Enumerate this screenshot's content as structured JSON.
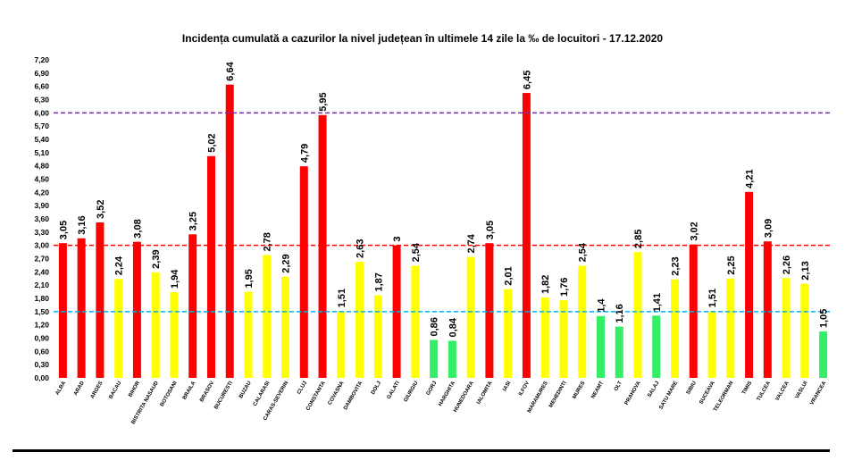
{
  "chart_data": {
    "type": "bar",
    "title": "Incidența cumulată a cazurilor la nivel județean în ultimele 14 zile la ‰ de locuitori - 17.12.2020",
    "xlabel": "",
    "ylabel": "",
    "ylim": [
      0,
      7.2
    ],
    "ytick_step": 0.3,
    "grid": false,
    "categories": [
      "ALBA",
      "ARAD",
      "ARGES",
      "BACAU",
      "BIHOR",
      "BISTRITA NASAUD",
      "BOTOSANI",
      "BRAILA",
      "BRASOV",
      "BUCURESTI",
      "BUZAU",
      "CALARASI",
      "CARAS-SEVERIN",
      "CLUJ",
      "CONSTANTA",
      "COVASNA",
      "DAMBOVITA",
      "DOLJ",
      "GALATI",
      "GIURGIU",
      "GORJ",
      "HARGHITA",
      "HUNEDOARA",
      "IALOMITA",
      "IASI",
      "ILFOV",
      "MARAMURES",
      "MEHEDINTI",
      "MURES",
      "NEAMT",
      "OLT",
      "PRAHOVA",
      "SALAJ",
      "SATU MARE",
      "SIBIU",
      "SUCEAVA",
      "TELEORMAN",
      "TIMIS",
      "TULCEA",
      "VALCEA",
      "VASLUI",
      "VRANCEA"
    ],
    "values": [
      3.05,
      3.16,
      3.52,
      2.24,
      3.08,
      2.39,
      1.94,
      3.25,
      5.02,
      6.64,
      1.95,
      2.78,
      2.29,
      4.79,
      5.95,
      1.51,
      2.63,
      1.87,
      3,
      2.54,
      0.86,
      0.84,
      2.74,
      3.05,
      2.01,
      6.45,
      1.82,
      1.76,
      2.54,
      1.4,
      1.16,
      2.85,
      1.41,
      2.23,
      3.02,
      1.51,
      2.25,
      4.21,
      3.09,
      2.26,
      2.13,
      1.05
    ],
    "value_labels": [
      "3,05",
      "3,16",
      "3,52",
      "2,24",
      "3,08",
      "2,39",
      "1,94",
      "3,25",
      "5,02",
      "6,64",
      "1,95",
      "2,78",
      "2,29",
      "4,79",
      "5,95",
      "1,51",
      "2,63",
      "1,87",
      "3",
      "2,54",
      "0,86",
      "0,84",
      "2,74",
      "3,05",
      "2,01",
      "6,45",
      "1,82",
      "1,76",
      "2,54",
      "1,4",
      "1,16",
      "2,85",
      "1,41",
      "2,23",
      "3,02",
      "1,51",
      "2,25",
      "4,21",
      "3,09",
      "2,26",
      "2,13",
      "1,05"
    ],
    "reference_lines": [
      {
        "value": 6.0,
        "color": "#7030A0"
      },
      {
        "value": 3.0,
        "color": "#FF0000"
      },
      {
        "value": 1.5,
        "color": "#00B0F0"
      }
    ],
    "color_bands": [
      {
        "max": 1.5,
        "color": "#33EE66"
      },
      {
        "max": 3.0,
        "color": "#FFFF00"
      },
      {
        "max": 99,
        "color": "#FF0000"
      }
    ]
  }
}
